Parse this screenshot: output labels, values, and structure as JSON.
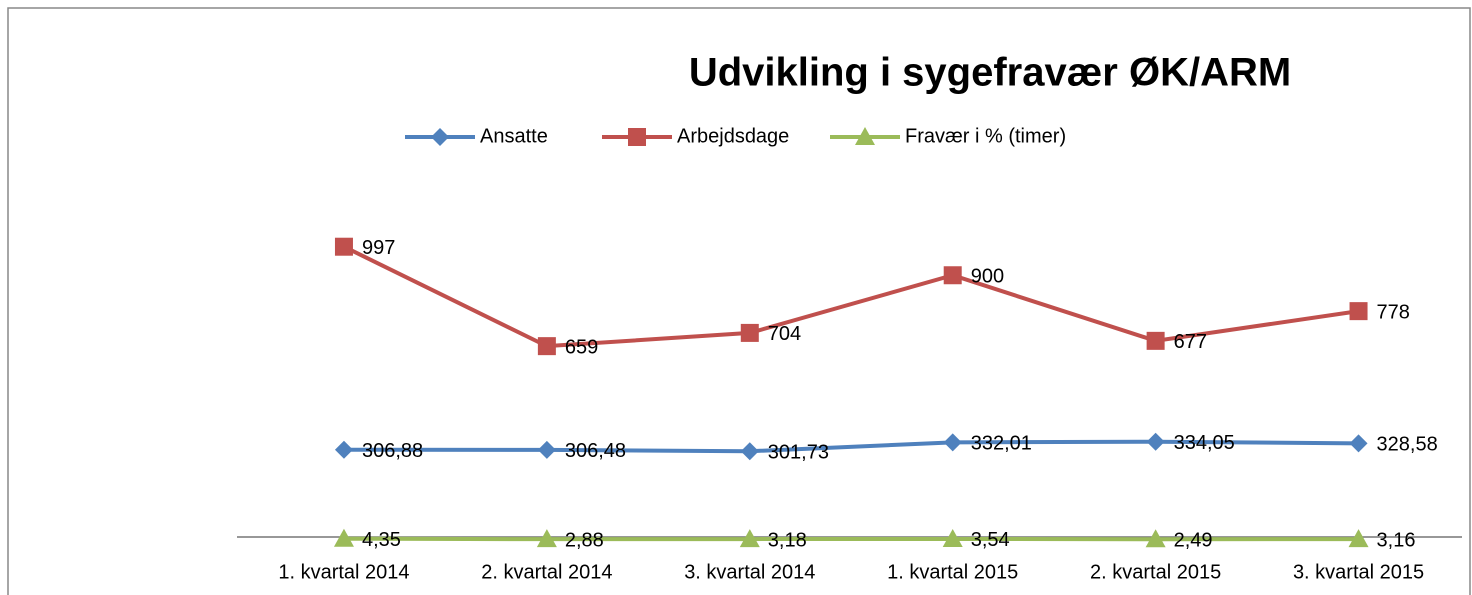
{
  "chart_data": {
    "type": "line",
    "title": "Udvikling i sygefravær ØK/ARM",
    "categories": [
      "1. kvartal 2014",
      "2. kvartal 2014",
      "3. kvartal 2014",
      "1. kvartal 2015",
      "2. kvartal 2015",
      "3. kvartal 2015"
    ],
    "ylim": [
      0,
      1200
    ],
    "series": [
      {
        "name": "Ansatte",
        "color": "#4f81bd",
        "marker": "diamond",
        "values": [
          306.88,
          306.48,
          301.73,
          332.01,
          334.05,
          328.58
        ],
        "value_labels": [
          "306,88",
          "306,48",
          "301,73",
          "332,01",
          "334,05",
          "328,58"
        ]
      },
      {
        "name": "Arbejdsdage",
        "color": "#c0504d",
        "marker": "square",
        "values": [
          997,
          659,
          704,
          900,
          677,
          778
        ]
      },
      {
        "name": "Fravær i % (timer)",
        "color": "#9bbb59",
        "marker": "triangle",
        "values": [
          4.35,
          2.88,
          3.18,
          3.54,
          2.49,
          3.16
        ],
        "value_labels": [
          "4,35",
          "2,88",
          "3,18",
          "3,54",
          "2,49",
          "3,16"
        ]
      }
    ]
  }
}
